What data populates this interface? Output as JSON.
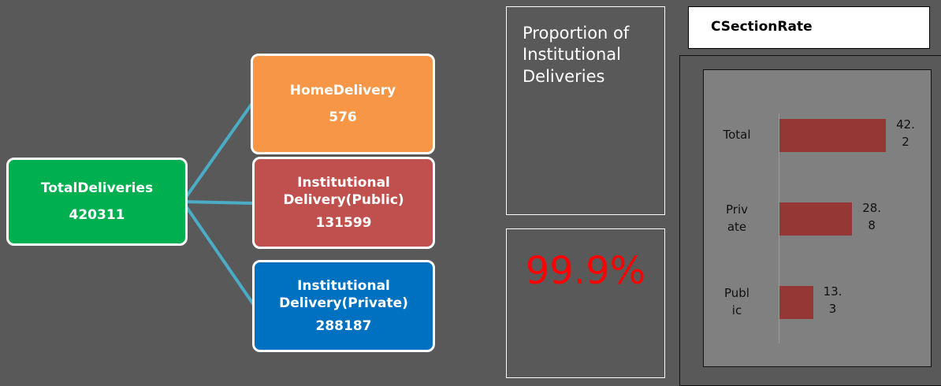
{
  "nodes": [
    {
      "label": "TotalDeliveries",
      "value": 420311
    },
    {
      "label": "HomeDelivery",
      "value": 576
    },
    {
      "label": "Institutional Delivery(Public)",
      "value": 131599
    },
    {
      "label": "Institutional Delivery(Private)",
      "value": 288187
    }
  ],
  "proportion": {
    "title": "Proportion of Institutional Deliveries",
    "value": "99.9%"
  },
  "chart_data": {
    "type": "bar",
    "orientation": "horizontal",
    "title": "CSectionRate",
    "categories": [
      "Total",
      "Private",
      "Public"
    ],
    "values": [
      42.2,
      28.8,
      13.3
    ],
    "color": "#953735",
    "xlim": [
      0,
      60
    ]
  }
}
